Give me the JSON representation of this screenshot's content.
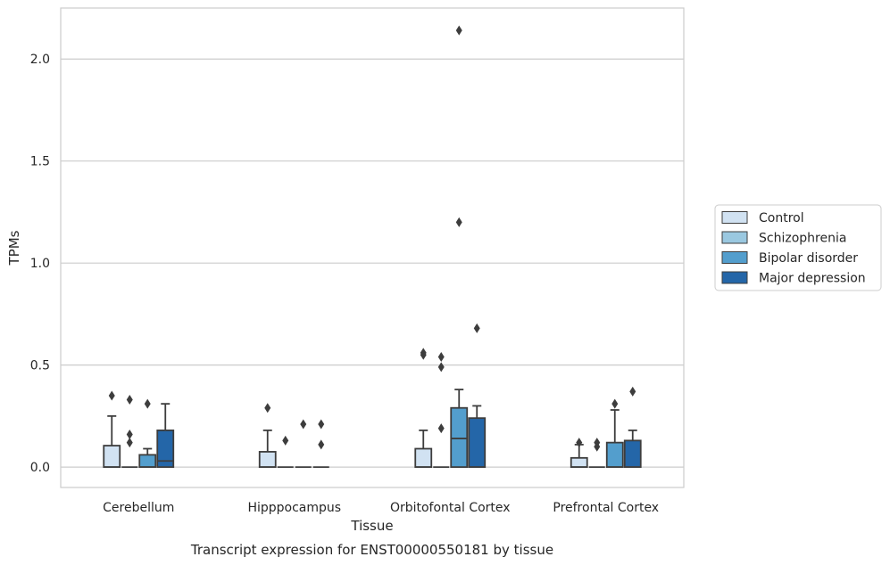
{
  "chart_data": {
    "type": "box",
    "title": "",
    "caption": "Transcript expression for ENST00000550181 by tissue",
    "xlabel": "Tissue",
    "ylabel": "TPMs",
    "ylim": [
      -0.1,
      2.25
    ],
    "yticks": [
      0.0,
      0.5,
      1.0,
      1.5,
      2.0
    ],
    "ytick_labels": [
      "0.0",
      "0.5",
      "1.0",
      "1.5",
      "2.0"
    ],
    "grid": "horizontal",
    "legend_position": "right",
    "categories": [
      "Cerebellum",
      "Hipppocampus",
      "Orbitofontal Cortex",
      "Prefrontal Cortex"
    ],
    "series": [
      {
        "name": "Control",
        "color": "#d1e2f2",
        "boxes": [
          {
            "q1": 0.0,
            "median": 0.0,
            "q3": 0.105,
            "whisker_low": 0.0,
            "whisker_high": 0.25,
            "outliers": [
              0.35
            ]
          },
          {
            "q1": 0.0,
            "median": 0.0,
            "q3": 0.075,
            "whisker_low": 0.0,
            "whisker_high": 0.18,
            "outliers": [
              0.29
            ]
          },
          {
            "q1": 0.0,
            "median": 0.0,
            "q3": 0.09,
            "whisker_low": 0.0,
            "whisker_high": 0.18,
            "outliers": [
              0.55,
              0.56
            ]
          },
          {
            "q1": 0.0,
            "median": 0.0,
            "q3": 0.045,
            "whisker_low": 0.0,
            "whisker_high": 0.11,
            "outliers": [
              0.12
            ]
          }
        ]
      },
      {
        "name": "Schizophrenia",
        "color": "#9ac8e0",
        "boxes": [
          {
            "q1": 0.0,
            "median": 0.0,
            "q3": 0.0,
            "whisker_low": 0.0,
            "whisker_high": 0.0,
            "outliers": [
              0.12,
              0.16,
              0.33
            ]
          },
          {
            "q1": 0.0,
            "median": 0.0,
            "q3": 0.0,
            "whisker_low": 0.0,
            "whisker_high": 0.0,
            "outliers": [
              0.13
            ]
          },
          {
            "q1": 0.0,
            "median": 0.0,
            "q3": 0.0,
            "whisker_low": 0.0,
            "whisker_high": 0.0,
            "outliers": [
              0.19,
              0.49,
              0.54
            ]
          },
          {
            "q1": 0.0,
            "median": 0.0,
            "q3": 0.0,
            "whisker_low": 0.0,
            "whisker_high": 0.0,
            "outliers": [
              0.1,
              0.12
            ]
          }
        ]
      },
      {
        "name": "Bipolar disorder",
        "color": "#539ecd",
        "boxes": [
          {
            "q1": 0.0,
            "median": 0.0,
            "q3": 0.06,
            "whisker_low": 0.0,
            "whisker_high": 0.09,
            "outliers": [
              0.31
            ]
          },
          {
            "q1": 0.0,
            "median": 0.0,
            "q3": 0.0,
            "whisker_low": 0.0,
            "whisker_high": 0.0,
            "outliers": [
              0.21
            ]
          },
          {
            "q1": 0.0,
            "median": 0.14,
            "q3": 0.29,
            "whisker_low": 0.0,
            "whisker_high": 0.38,
            "outliers": [
              1.2,
              2.14
            ]
          },
          {
            "q1": 0.0,
            "median": 0.0,
            "q3": 0.12,
            "whisker_low": 0.0,
            "whisker_high": 0.28,
            "outliers": [
              0.31
            ]
          }
        ]
      },
      {
        "name": "Major depression",
        "color": "#2466a8",
        "boxes": [
          {
            "q1": 0.0,
            "median": 0.03,
            "q3": 0.18,
            "whisker_low": 0.0,
            "whisker_high": 0.31,
            "outliers": []
          },
          {
            "q1": 0.0,
            "median": 0.0,
            "q3": 0.0,
            "whisker_low": 0.0,
            "whisker_high": 0.0,
            "outliers": [
              0.11,
              0.21
            ]
          },
          {
            "q1": 0.0,
            "median": 0.0,
            "q3": 0.24,
            "whisker_low": 0.0,
            "whisker_high": 0.3,
            "outliers": [
              0.68
            ]
          },
          {
            "q1": 0.0,
            "median": 0.0,
            "q3": 0.13,
            "whisker_low": 0.0,
            "whisker_high": 0.18,
            "outliers": [
              0.37
            ]
          }
        ]
      }
    ]
  }
}
